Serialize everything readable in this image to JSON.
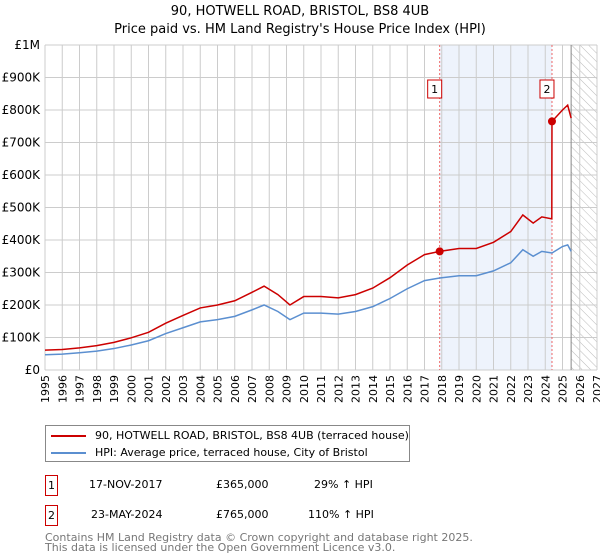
{
  "title": "90, HOTWELL ROAD, BRISTOL, BS8 4UB",
  "subtitle": "Price paid vs. HM Land Registry's House Price Index (HPI)",
  "legend": [
    {
      "label": "90, HOTWELL ROAD, BRISTOL, BS8 4UB (terraced house)",
      "color": "#cc0000"
    },
    {
      "label": "HPI: Average price, terraced house, City of Bristol",
      "color": "#5b8fd0"
    }
  ],
  "sales": [
    {
      "num": "1",
      "date": "17-NOV-2017",
      "price": "£365,000",
      "hpi": "29% ↑ HPI"
    },
    {
      "num": "2",
      "date": "23-MAY-2024",
      "price": "£765,000",
      "hpi": "110% ↑ HPI"
    }
  ],
  "footer": [
    "Contains HM Land Registry data © Crown copyright and database right 2025.",
    "This data is licensed under the Open Government Licence v3.0."
  ],
  "chart_data": {
    "type": "line",
    "xlim": [
      1995,
      2027
    ],
    "ylim": [
      0,
      1000000
    ],
    "x_ticks": [
      "1995",
      "1996",
      "1997",
      "1998",
      "1999",
      "2000",
      "2001",
      "2002",
      "2003",
      "2004",
      "2005",
      "2006",
      "2007",
      "2008",
      "2009",
      "2010",
      "2011",
      "2012",
      "2013",
      "2014",
      "2015",
      "2016",
      "2017",
      "2018",
      "2019",
      "2020",
      "2021",
      "2022",
      "2023",
      "2024",
      "2025",
      "2026",
      "2027"
    ],
    "y_ticks": [
      {
        "v": 0,
        "label": "£0"
      },
      {
        "v": 100000,
        "label": "£100K"
      },
      {
        "v": 200000,
        "label": "£200K"
      },
      {
        "v": 300000,
        "label": "£300K"
      },
      {
        "v": 400000,
        "label": "£400K"
      },
      {
        "v": 500000,
        "label": "£500K"
      },
      {
        "v": 600000,
        "label": "£600K"
      },
      {
        "v": 700000,
        "label": "£700K"
      },
      {
        "v": 800000,
        "label": "£800K"
      },
      {
        "v": 900000,
        "label": "£900K"
      },
      {
        "v": 1000000,
        "label": "£1M"
      }
    ],
    "grid": true,
    "shaded_range": [
      2017.88,
      2024.39
    ],
    "forecast_from": 2025.5,
    "markers": [
      {
        "label": "1",
        "x": 2017.88,
        "y": 365000
      },
      {
        "label": "2",
        "x": 2024.39,
        "y": 765000
      }
    ],
    "series": [
      {
        "name": "90, HOTWELL ROAD, BRISTOL, BS8 4UB (terraced house)",
        "color": "#cc0000",
        "x": [
          1995,
          1996,
          1997,
          1998,
          1999,
          2000,
          2001,
          2002,
          2003,
          2004,
          2005,
          2006,
          2007,
          2007.7,
          2008.5,
          2009.2,
          2010,
          2011,
          2012,
          2013,
          2014,
          2015,
          2016,
          2017,
          2017.88,
          2019,
          2020,
          2021,
          2022,
          2022.7,
          2023.3,
          2023.8,
          2024.38,
          2024.39,
          2025,
          2025.3,
          2025.5
        ],
        "y": [
          61000,
          63000,
          68000,
          75000,
          85000,
          99000,
          116000,
          144000,
          168000,
          191000,
          200000,
          213000,
          239000,
          258000,
          232000,
          200000,
          226000,
          226000,
          222000,
          232000,
          252000,
          284000,
          323000,
          355000,
          365000,
          374000,
          374000,
          393000,
          426000,
          477000,
          452000,
          471000,
          465000,
          765000,
          800000,
          815000,
          775000
        ]
      },
      {
        "name": "HPI: Average price, terraced house, City of Bristol",
        "color": "#5b8fd0",
        "x": [
          1995,
          1996,
          1997,
          1998,
          1999,
          2000,
          2001,
          2002,
          2003,
          2004,
          2005,
          2006,
          2007,
          2007.7,
          2008.5,
          2009.2,
          2010,
          2011,
          2012,
          2013,
          2014,
          2015,
          2016,
          2017,
          2017.88,
          2019,
          2020,
          2021,
          2022,
          2022.7,
          2023.3,
          2023.8,
          2024.39,
          2025,
          2025.3,
          2025.5
        ],
        "y": [
          47000,
          49000,
          53000,
          58000,
          66000,
          77000,
          90000,
          112000,
          130000,
          148000,
          155000,
          165000,
          185000,
          200000,
          180000,
          155000,
          175000,
          175000,
          172000,
          180000,
          195000,
          220000,
          250000,
          275000,
          283000,
          290000,
          290000,
          305000,
          330000,
          370000,
          350000,
          365000,
          360000,
          380000,
          385000,
          365000
        ]
      }
    ]
  }
}
